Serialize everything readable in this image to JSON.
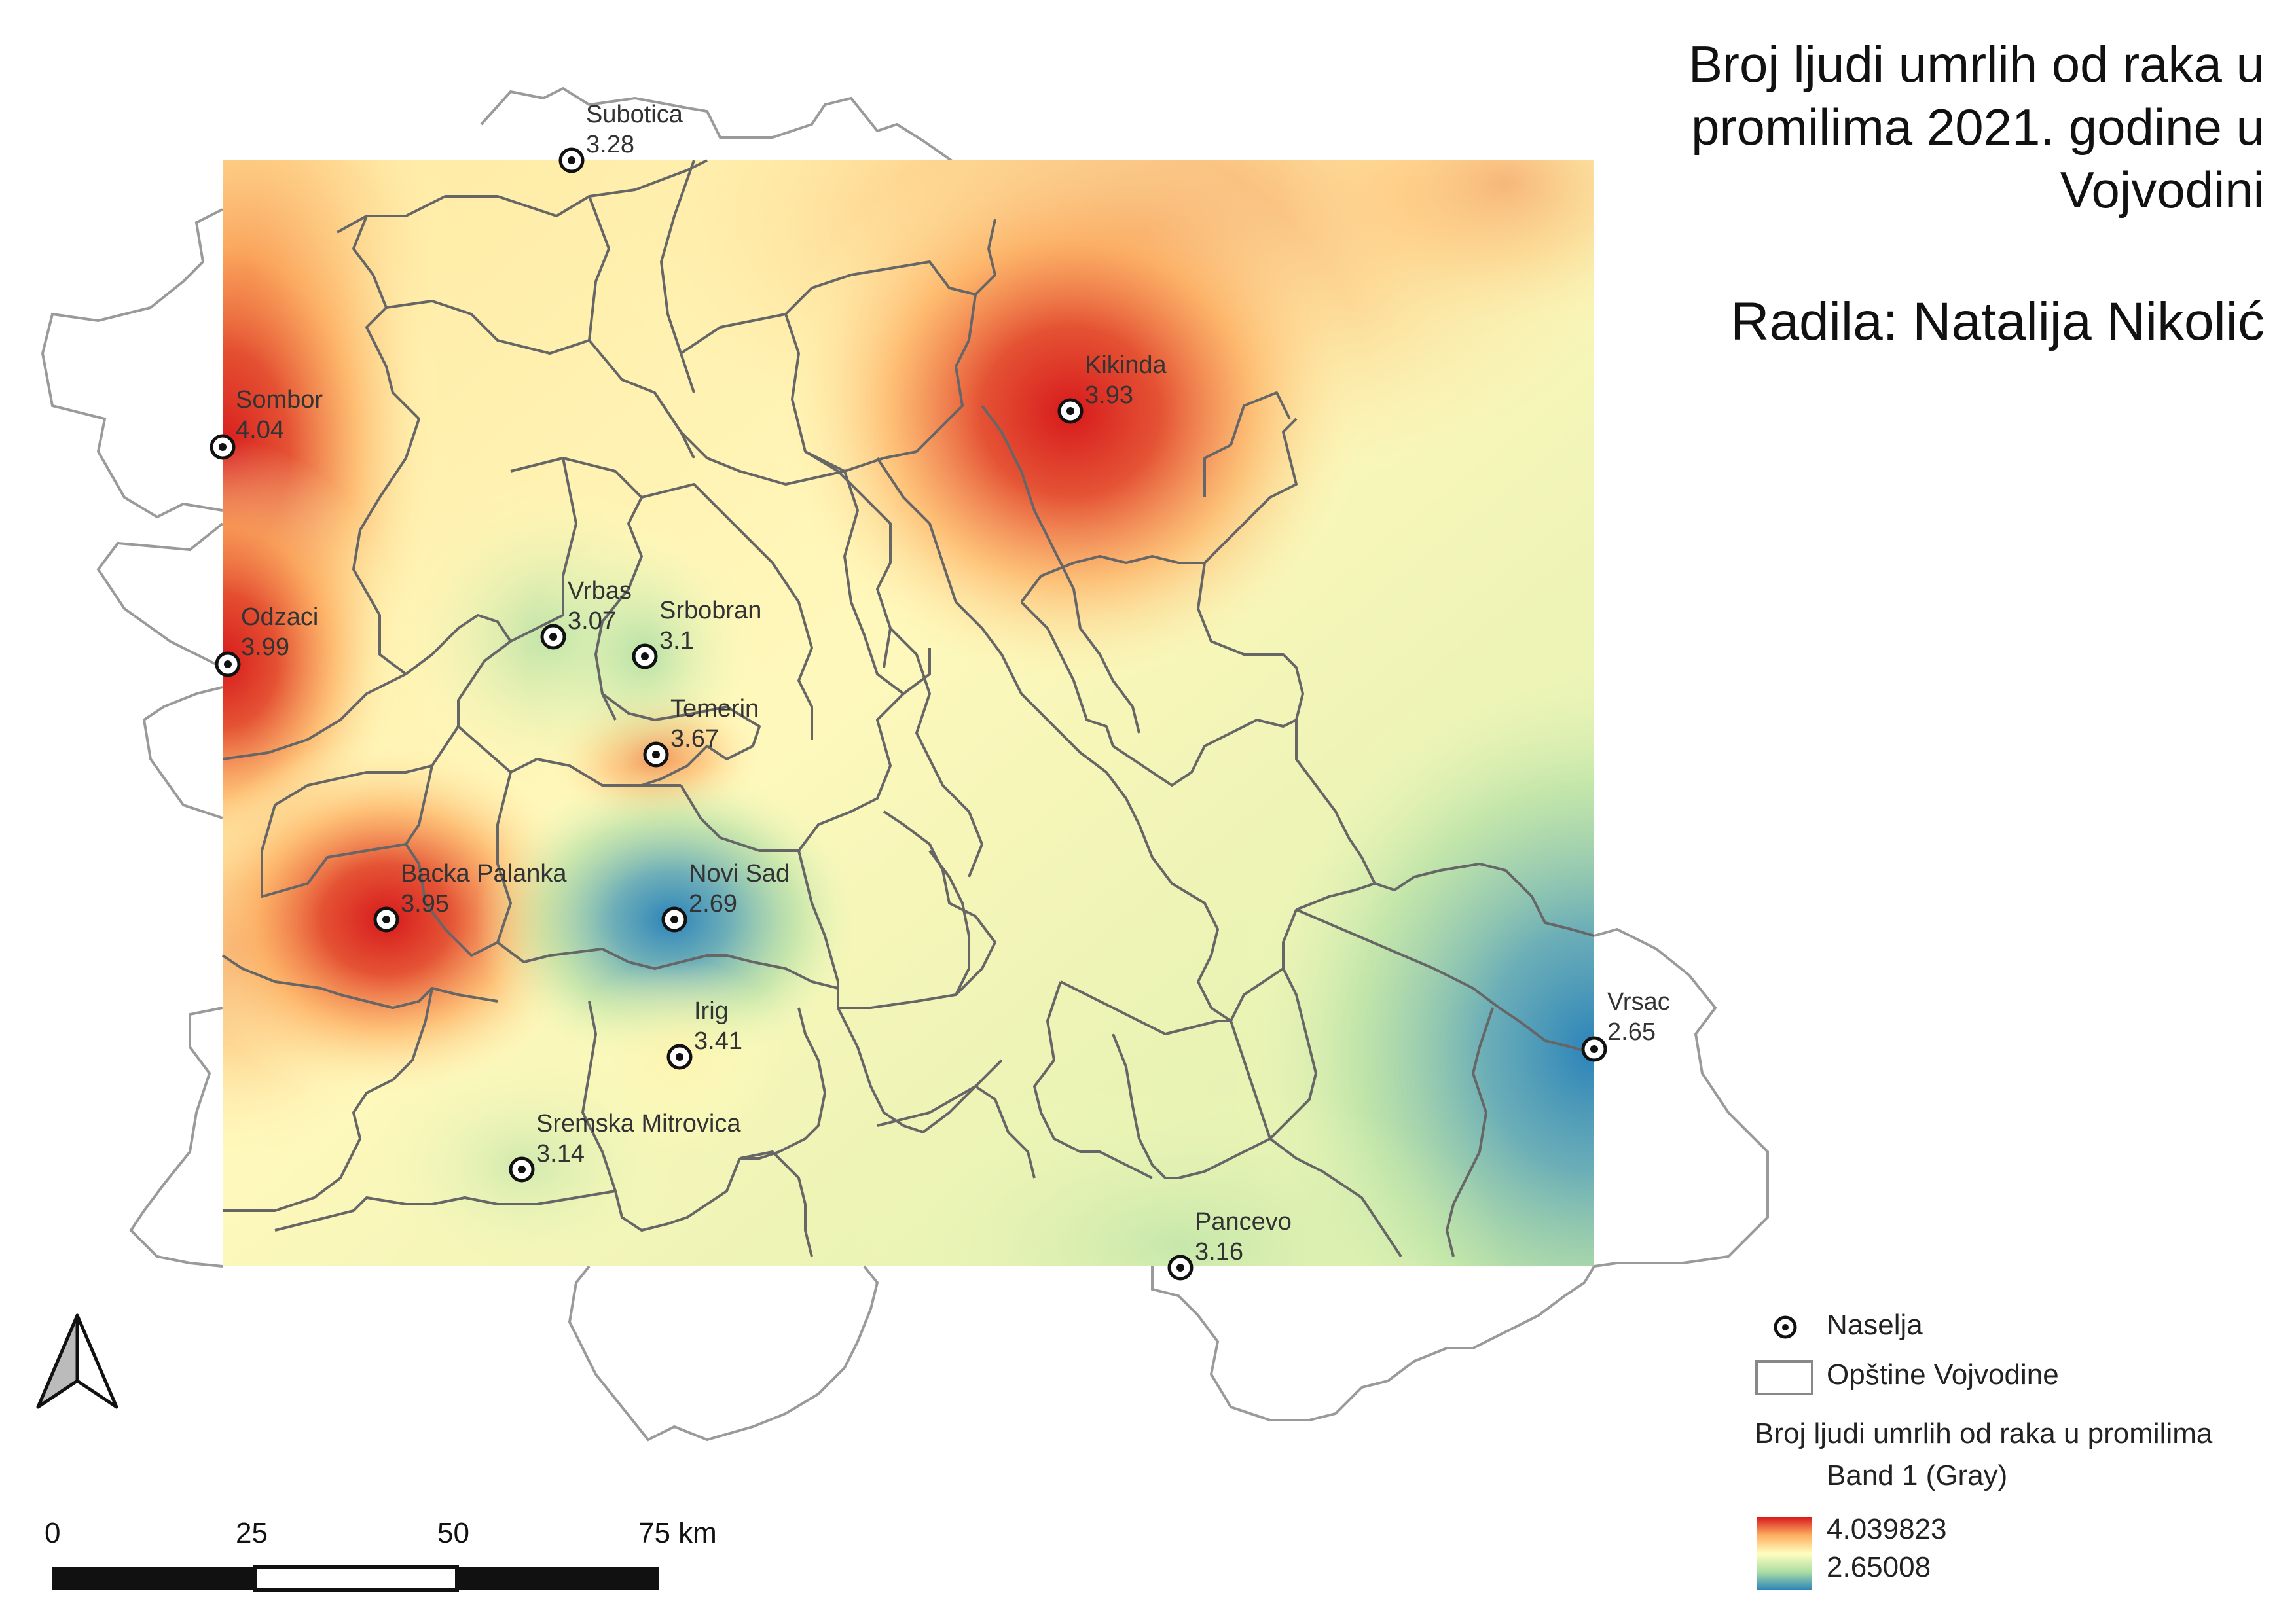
{
  "title": "Broj ljudi umrlih od raka u promilima 2021. godine u Vojvodini",
  "author": "Radila: Natalija Nikolić",
  "towns": [
    {
      "name": "Subotica",
      "value": "3.28"
    },
    {
      "name": "Kikinda",
      "value": "3.93"
    },
    {
      "name": "Sombor",
      "value": "4.04"
    },
    {
      "name": "Vrbas",
      "value": "3.07"
    },
    {
      "name": "Srbobran",
      "value": "3.1"
    },
    {
      "name": "Odzaci",
      "value": "3.99"
    },
    {
      "name": "Temerin",
      "value": "3.67"
    },
    {
      "name": "Backa Palanka",
      "value": "3.95"
    },
    {
      "name": "Novi Sad",
      "value": "2.69"
    },
    {
      "name": "Irig",
      "value": "3.41"
    },
    {
      "name": "Vrsac",
      "value": "2.65"
    },
    {
      "name": "Sremska Mitrovica",
      "value": "3.14"
    },
    {
      "name": "Pancevo",
      "value": "3.16"
    }
  ],
  "legend": {
    "points_label": "Naselja",
    "municipalities_label": "Opštine Vojvodine",
    "raster_title": "Broj ljudi umrlih od raka u promilima",
    "band_label": "Band 1 (Gray)",
    "max_value": "4.039823",
    "min_value": "2.65008"
  },
  "scale_bar": {
    "ticks": [
      "0",
      "25",
      "50",
      "75 km"
    ]
  },
  "colors": {
    "high": "#d7191c",
    "mid_high": "#fdae61",
    "mid": "#ffffbf",
    "mid_low": "#abdda4",
    "low": "#2b83ba",
    "boundary": "#666666",
    "outer_boundary": "#999999"
  },
  "north_arrow_icon": "north-arrow-icon"
}
